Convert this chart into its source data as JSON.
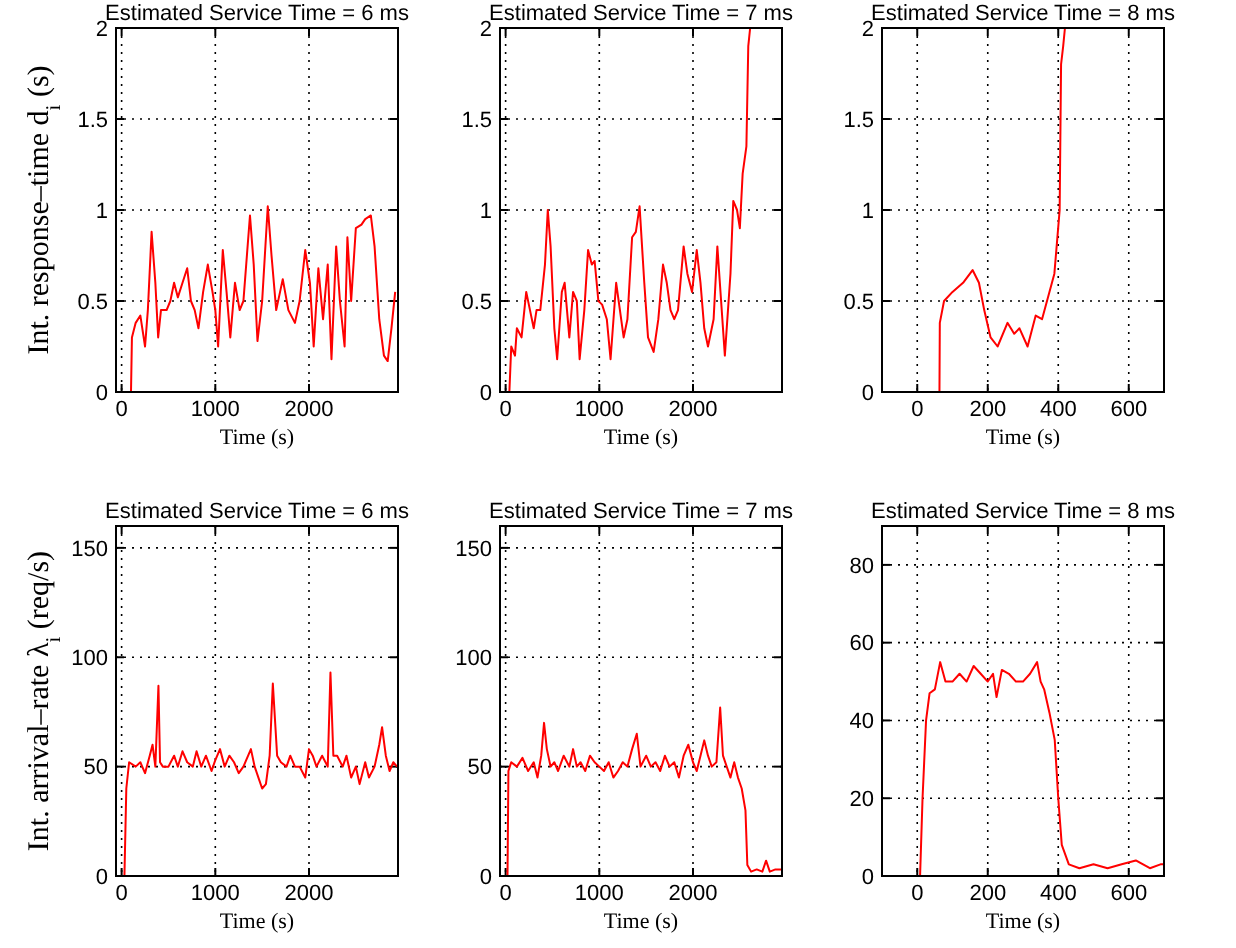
{
  "chart_data": [
    {
      "type": "line",
      "title": "Estimated Service Time = 6 ms",
      "xlabel": "Time (s)",
      "ylabel": "Int. response–time d$_{i}$ (s)",
      "xlim": [
        -60,
        2950
      ],
      "xticks": [
        0,
        1000,
        2000
      ],
      "ylim": [
        0,
        2
      ],
      "yticks": [
        0,
        0.5,
        1,
        1.5,
        2
      ],
      "grid": true,
      "series": [
        {
          "color": "#ff0000",
          "x": [
            60,
            100,
            110,
            150,
            200,
            250,
            280,
            320,
            360,
            390,
            420,
            480,
            520,
            560,
            600,
            650,
            700,
            740,
            780,
            820,
            870,
            920,
            970,
            1000,
            1030,
            1080,
            1120,
            1160,
            1210,
            1260,
            1300,
            1370,
            1410,
            1450,
            1500,
            1560,
            1600,
            1650,
            1720,
            1780,
            1850,
            1900,
            1960,
            2010,
            2050,
            2100,
            2150,
            2200,
            2240,
            2290,
            2330,
            2380,
            2410,
            2450,
            2500,
            2560,
            2600,
            2660,
            2700,
            2750,
            2800,
            2840,
            2880,
            2920
          ],
          "values": [
            0,
            0,
            0.3,
            0.38,
            0.42,
            0.25,
            0.45,
            0.88,
            0.6,
            0.3,
            0.45,
            0.45,
            0.5,
            0.6,
            0.52,
            0.6,
            0.68,
            0.5,
            0.45,
            0.35,
            0.55,
            0.7,
            0.55,
            0.45,
            0.25,
            0.78,
            0.55,
            0.3,
            0.6,
            0.45,
            0.5,
            0.97,
            0.7,
            0.28,
            0.5,
            1.02,
            0.75,
            0.45,
            0.62,
            0.45,
            0.38,
            0.5,
            0.78,
            0.6,
            0.25,
            0.68,
            0.4,
            0.7,
            0.18,
            0.8,
            0.5,
            0.25,
            0.85,
            0.5,
            0.9,
            0.92,
            0.95,
            0.97,
            0.8,
            0.4,
            0.2,
            0.17,
            0.35,
            0.55
          ]
        }
      ]
    },
    {
      "type": "line",
      "title": "Estimated Service Time = 7 ms",
      "xlabel": "Time (s)",
      "xlim": [
        -60,
        2950
      ],
      "xticks": [
        0,
        1000,
        2000
      ],
      "ylim": [
        0,
        2
      ],
      "yticks": [
        0,
        0.5,
        1,
        1.5,
        2
      ],
      "grid": true,
      "series": [
        {
          "color": "#ff0000",
          "x": [
            0,
            40,
            60,
            100,
            120,
            170,
            220,
            260,
            300,
            330,
            370,
            420,
            450,
            480,
            520,
            550,
            600,
            630,
            680,
            720,
            760,
            790,
            840,
            880,
            920,
            950,
            990,
            1030,
            1080,
            1120,
            1180,
            1220,
            1260,
            1300,
            1350,
            1390,
            1430,
            1480,
            1520,
            1580,
            1630,
            1680,
            1720,
            1760,
            1800,
            1840,
            1900,
            1940,
            1990,
            2040,
            2080,
            2120,
            2160,
            2220,
            2260,
            2300,
            2340,
            2400,
            2430,
            2470,
            2500,
            2530,
            2570,
            2590,
            2610
          ],
          "values": [
            0,
            0,
            0.25,
            0.2,
            0.35,
            0.3,
            0.55,
            0.45,
            0.35,
            0.45,
            0.45,
            0.7,
            1.0,
            0.8,
            0.35,
            0.18,
            0.55,
            0.6,
            0.3,
            0.55,
            0.5,
            0.18,
            0.45,
            0.78,
            0.7,
            0.72,
            0.5,
            0.48,
            0.4,
            0.18,
            0.6,
            0.45,
            0.3,
            0.4,
            0.85,
            0.88,
            1.02,
            0.6,
            0.3,
            0.22,
            0.4,
            0.7,
            0.6,
            0.45,
            0.4,
            0.45,
            0.8,
            0.65,
            0.55,
            0.78,
            0.6,
            0.35,
            0.25,
            0.4,
            0.8,
            0.5,
            0.2,
            0.65,
            1.05,
            1.0,
            0.9,
            1.2,
            1.35,
            1.9,
            2.0
          ]
        }
      ]
    },
    {
      "type": "line",
      "title": "Estimated Service Time = 8 ms",
      "xlabel": "Time (s)",
      "xlim": [
        -100,
        700
      ],
      "xticks": [
        0,
        200,
        400,
        600
      ],
      "ylim": [
        0,
        2
      ],
      "yticks": [
        0,
        0.5,
        1,
        1.5,
        2
      ],
      "grid": true,
      "series": [
        {
          "color": "#ff0000",
          "x": [
            63,
            64,
            76,
            100,
            130,
            157,
            175,
            190,
            208,
            228,
            256,
            275,
            290,
            313,
            336,
            354,
            375,
            389,
            404,
            408,
            414,
            419
          ],
          "values": [
            0,
            0.38,
            0.5,
            0.55,
            0.6,
            0.67,
            0.6,
            0.45,
            0.3,
            0.25,
            0.38,
            0.32,
            0.35,
            0.25,
            0.42,
            0.4,
            0.55,
            0.65,
            1.0,
            1.8,
            1.9,
            2.0
          ]
        }
      ]
    },
    {
      "type": "line",
      "title": "Estimated Service Time = 6 ms",
      "xlabel": "Time (s)",
      "ylabel": "Int. arrival–rate λ$_{i}$ (req/s)",
      "xlim": [
        -60,
        2950
      ],
      "xticks": [
        0,
        1000,
        2000
      ],
      "ylim": [
        0,
        160
      ],
      "yticks": [
        0,
        50,
        100,
        150
      ],
      "grid": true,
      "series": [
        {
          "color": "#ff0000",
          "x": [
            30,
            50,
            80,
            150,
            200,
            250,
            300,
            330,
            360,
            393,
            410,
            440,
            500,
            560,
            600,
            650,
            700,
            760,
            800,
            850,
            900,
            960,
            1000,
            1050,
            1100,
            1150,
            1200,
            1250,
            1300,
            1380,
            1420,
            1460,
            1500,
            1540,
            1580,
            1614,
            1660,
            1700,
            1760,
            1800,
            1850,
            1900,
            1960,
            2000,
            2040,
            2080,
            2140,
            2200,
            2229,
            2260,
            2300,
            2360,
            2400,
            2450,
            2500,
            2540,
            2600,
            2640,
            2700,
            2750,
            2780,
            2820,
            2860,
            2900,
            2940
          ],
          "values": [
            0,
            40,
            52,
            50,
            52,
            47,
            55,
            60,
            50,
            87,
            52,
            50,
            50,
            55,
            50,
            57,
            52,
            50,
            57,
            50,
            55,
            48,
            53,
            58,
            50,
            55,
            52,
            47,
            50,
            58,
            50,
            45,
            40,
            42,
            55,
            88,
            55,
            52,
            50,
            55,
            50,
            50,
            45,
            58,
            55,
            50,
            55,
            50,
            93,
            55,
            55,
            50,
            55,
            45,
            50,
            42,
            52,
            45,
            50,
            60,
            68,
            55,
            48,
            52,
            50
          ]
        }
      ]
    },
    {
      "type": "line",
      "title": "Estimated Service Time = 7 ms",
      "xlabel": "Time (s)",
      "xlim": [
        -60,
        2950
      ],
      "xticks": [
        0,
        1000,
        2000
      ],
      "ylim": [
        0,
        160
      ],
      "yticks": [
        0,
        50,
        100,
        150
      ],
      "grid": true,
      "series": [
        {
          "color": "#ff0000",
          "x": [
            20,
            30,
            60,
            120,
            180,
            240,
            300,
            340,
            380,
            410,
            440,
            480,
            520,
            560,
            620,
            680,
            720,
            760,
            800,
            850,
            900,
            950,
            1000,
            1050,
            1100,
            1150,
            1200,
            1250,
            1300,
            1350,
            1400,
            1440,
            1500,
            1550,
            1600,
            1650,
            1700,
            1750,
            1800,
            1850,
            1900,
            1950,
            2000,
            2040,
            2080,
            2120,
            2160,
            2200,
            2250,
            2290,
            2320,
            2360,
            2400,
            2440,
            2480,
            2520,
            2560,
            2580,
            2620,
            2680,
            2740,
            2780,
            2820,
            2880,
            2950
          ],
          "values": [
            0,
            48,
            52,
            50,
            54,
            48,
            52,
            45,
            55,
            70,
            58,
            50,
            52,
            48,
            55,
            50,
            58,
            50,
            52,
            48,
            55,
            52,
            50,
            48,
            52,
            45,
            48,
            52,
            50,
            58,
            65,
            50,
            55,
            50,
            52,
            48,
            55,
            50,
            52,
            45,
            55,
            60,
            52,
            48,
            55,
            62,
            55,
            50,
            52,
            77,
            55,
            50,
            45,
            52,
            45,
            40,
            30,
            5,
            2,
            3,
            2,
            7,
            2,
            3,
            3
          ]
        }
      ]
    },
    {
      "type": "line",
      "title": "Estimated Service Time = 8 ms",
      "xlabel": "Time (s)",
      "xlim": [
        -100,
        700
      ],
      "xticks": [
        0,
        200,
        400,
        600
      ],
      "ylim": [
        0,
        90
      ],
      "yticks": [
        0,
        20,
        40,
        60,
        80
      ],
      "grid": true,
      "series": [
        {
          "color": "#ff0000",
          "x": [
            8,
            15,
            25,
            35,
            50,
            65,
            80,
            100,
            120,
            140,
            160,
            180,
            200,
            215,
            225,
            240,
            260,
            280,
            300,
            320,
            340,
            350,
            360,
            375,
            390,
            400,
            410,
            430,
            460,
            500,
            540,
            580,
            620,
            660,
            690,
            700
          ],
          "values": [
            0,
            20,
            40,
            47,
            48,
            55,
            50,
            50,
            52,
            50,
            54,
            52,
            50,
            52,
            46,
            53,
            52,
            50,
            50,
            52,
            55,
            50,
            48,
            42,
            35,
            20,
            8,
            3,
            2,
            3,
            2,
            3,
            4,
            2,
            3,
            3
          ]
        }
      ]
    }
  ]
}
